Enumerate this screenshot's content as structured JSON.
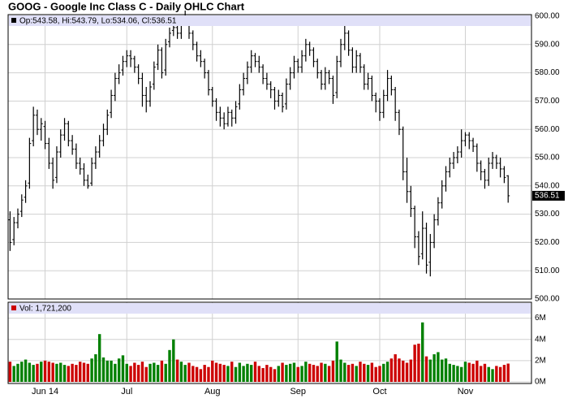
{
  "chart_data": [
    {
      "type": "ohlc",
      "title": "GOOG - Google Inc Class C - Daily OHLC Chart",
      "legend_text": "Op:543.58, Hi:543.79, Lo:534.06, Cl:536.51",
      "color": "#000000",
      "grid": true,
      "xlim": [
        -0.5,
        134
      ],
      "xticks": [
        {
          "value": 9,
          "label": "Jun 14"
        },
        {
          "value": 30,
          "label": "Jul"
        },
        {
          "value": 52,
          "label": "Aug"
        },
        {
          "value": 74,
          "label": "Sep"
        },
        {
          "value": 95,
          "label": "Oct"
        },
        {
          "value": 117,
          "label": "Nov"
        }
      ],
      "ylim": [
        500,
        600
      ],
      "yticks": [
        {
          "value": 500,
          "label": "500.00"
        },
        {
          "value": 510,
          "label": "510.00"
        },
        {
          "value": 520,
          "label": "520.00"
        },
        {
          "value": 530,
          "label": "530.00"
        },
        {
          "value": 540,
          "label": "540.00"
        },
        {
          "value": 550,
          "label": "550.00"
        },
        {
          "value": 560,
          "label": "560.00"
        },
        {
          "value": 570,
          "label": "570.00"
        },
        {
          "value": 580,
          "label": "580.00"
        },
        {
          "value": 590,
          "label": "590.00"
        },
        {
          "value": 600,
          "label": "600.00"
        }
      ],
      "ohlc": [
        [
          528,
          531,
          517,
          520
        ],
        [
          521,
          529,
          519,
          527
        ],
        [
          527,
          532,
          525,
          530
        ],
        [
          531,
          537,
          529,
          535
        ],
        [
          536,
          542,
          534,
          540
        ],
        [
          541,
          557,
          539,
          555
        ],
        [
          556,
          568,
          554,
          565
        ],
        [
          565,
          567,
          558,
          560
        ],
        [
          560,
          564,
          556,
          562
        ],
        [
          561,
          563,
          553,
          555
        ],
        [
          555,
          557,
          546,
          548
        ],
        [
          548,
          550,
          539,
          542
        ],
        [
          543,
          554,
          541,
          552
        ],
        [
          552,
          560,
          550,
          558
        ],
        [
          558,
          564,
          556,
          562
        ],
        [
          562,
          563,
          554,
          556
        ],
        [
          556,
          558,
          551,
          553
        ],
        [
          553,
          555,
          546,
          548
        ],
        [
          548,
          550,
          544,
          546
        ],
        [
          546,
          548,
          540,
          542
        ],
        [
          542,
          544,
          539,
          540
        ],
        [
          541,
          550,
          540,
          548
        ],
        [
          548,
          554,
          546,
          552
        ],
        [
          552,
          558,
          550,
          556
        ],
        [
          556,
          562,
          554,
          560
        ],
        [
          560,
          567,
          558,
          565
        ],
        [
          566,
          574,
          564,
          572
        ],
        [
          572,
          580,
          570,
          578
        ],
        [
          578,
          583,
          576,
          580
        ],
        [
          581,
          586,
          579,
          584
        ],
        [
          584,
          588,
          582,
          586
        ],
        [
          586,
          588,
          582,
          585
        ],
        [
          585,
          586,
          580,
          582
        ],
        [
          582,
          583,
          576,
          578
        ],
        [
          578,
          580,
          568,
          572
        ],
        [
          572,
          575,
          566,
          570
        ],
        [
          570,
          577,
          568,
          575
        ],
        [
          576,
          584,
          574,
          582
        ],
        [
          583,
          590,
          581,
          588
        ],
        [
          588,
          589,
          578,
          580
        ],
        [
          581,
          592,
          579,
          590
        ],
        [
          591,
          596,
          589,
          594
        ],
        [
          595,
          598,
          593,
          596
        ],
        [
          596,
          597,
          592,
          594
        ],
        [
          594,
          600,
          592,
          598
        ],
        [
          599,
          602,
          597,
          600
        ],
        [
          599,
          600,
          592,
          594
        ],
        [
          594,
          595,
          588,
          590
        ],
        [
          590,
          591,
          584,
          586
        ],
        [
          586,
          588,
          582,
          584
        ],
        [
          584,
          585,
          578,
          580
        ],
        [
          580,
          581,
          572,
          574
        ],
        [
          574,
          575,
          568,
          570
        ],
        [
          570,
          571,
          563,
          566
        ],
        [
          566,
          568,
          561,
          564
        ],
        [
          564,
          566,
          560,
          562
        ],
        [
          562,
          568,
          561,
          566
        ],
        [
          566,
          567,
          561,
          564
        ],
        [
          564,
          570,
          562,
          568
        ],
        [
          569,
          576,
          567,
          574
        ],
        [
          574,
          580,
          572,
          578
        ],
        [
          578,
          584,
          576,
          582
        ],
        [
          582,
          588,
          580,
          586
        ],
        [
          586,
          587,
          582,
          584
        ],
        [
          584,
          586,
          580,
          582
        ],
        [
          582,
          583,
          576,
          578
        ],
        [
          578,
          580,
          574,
          576
        ],
        [
          576,
          577,
          571,
          574
        ],
        [
          574,
          575,
          567,
          570
        ],
        [
          570,
          574,
          568,
          572
        ],
        [
          572,
          573,
          566,
          568
        ],
        [
          569,
          578,
          567,
          576
        ],
        [
          576,
          582,
          574,
          580
        ],
        [
          580,
          586,
          578,
          584
        ],
        [
          584,
          585,
          580,
          582
        ],
        [
          582,
          588,
          580,
          586
        ],
        [
          586,
          592,
          584,
          590
        ],
        [
          590,
          591,
          586,
          588
        ],
        [
          588,
          589,
          582,
          584
        ],
        [
          584,
          585,
          578,
          580
        ],
        [
          580,
          581,
          574,
          576
        ],
        [
          576,
          582,
          574,
          580
        ],
        [
          580,
          581,
          576,
          578
        ],
        [
          578,
          579,
          569,
          572
        ],
        [
          573,
          586,
          571,
          584
        ],
        [
          584,
          592,
          582,
          590
        ],
        [
          590,
          597,
          588,
          594
        ],
        [
          594,
          595,
          586,
          588
        ],
        [
          588,
          589,
          580,
          582
        ],
        [
          582,
          588,
          580,
          586
        ],
        [
          586,
          587,
          580,
          582
        ],
        [
          582,
          583,
          574,
          576
        ],
        [
          576,
          580,
          574,
          578
        ],
        [
          578,
          579,
          570,
          572
        ],
        [
          572,
          573,
          566,
          570
        ],
        [
          570,
          571,
          563,
          566
        ],
        [
          566,
          574,
          564,
          572
        ],
        [
          572,
          581,
          570,
          578
        ],
        [
          578,
          579,
          572,
          574
        ],
        [
          574,
          575,
          563,
          566
        ],
        [
          566,
          567,
          558,
          560
        ],
        [
          560,
          561,
          542,
          545
        ],
        [
          545,
          550,
          534,
          538
        ],
        [
          538,
          540,
          529,
          532
        ],
        [
          532,
          533,
          518,
          522
        ],
        [
          522,
          524,
          512,
          515
        ],
        [
          516,
          531,
          514,
          525
        ],
        [
          525,
          527,
          509,
          512
        ],
        [
          513,
          523,
          508,
          520
        ],
        [
          520,
          530,
          518,
          528
        ],
        [
          528,
          536,
          526,
          534
        ],
        [
          534,
          542,
          532,
          540
        ],
        [
          540,
          547,
          538,
          545
        ],
        [
          545,
          550,
          543,
          548
        ],
        [
          548,
          552,
          546,
          550
        ],
        [
          550,
          554,
          548,
          552
        ],
        [
          552,
          560,
          550,
          556
        ],
        [
          556,
          559,
          554,
          558
        ],
        [
          558,
          559,
          553,
          556
        ],
        [
          556,
          557,
          552,
          554
        ],
        [
          554,
          555,
          545,
          548
        ],
        [
          548,
          549,
          542,
          545
        ],
        [
          545,
          546,
          539,
          542
        ],
        [
          542,
          550,
          540,
          548
        ],
        [
          548,
          552,
          546,
          550
        ],
        [
          550,
          551,
          546,
          548
        ],
        [
          548,
          550,
          543,
          546
        ],
        [
          546,
          547,
          541,
          543
        ],
        [
          543.58,
          543.79,
          534.06,
          536.51
        ]
      ]
    },
    {
      "type": "volume",
      "legend_text": "Vol: 1,721,200",
      "up_color": "#008000",
      "down_color": "#cc0000",
      "grid": true,
      "xlim": [
        -0.5,
        134
      ],
      "ylim": [
        0,
        7500000
      ],
      "yticks": [
        {
          "value": 0,
          "label": "0M"
        },
        {
          "value": 2000000,
          "label": "2M"
        },
        {
          "value": 4000000,
          "label": "4M"
        },
        {
          "value": 6000000,
          "label": "6M"
        }
      ],
      "values": [
        1900000,
        1500000,
        1700000,
        1900000,
        2100000,
        1800000,
        1600000,
        1700000,
        1900000,
        2000000,
        1900000,
        1800000,
        1700000,
        1800000,
        1600000,
        1500000,
        1700000,
        1600000,
        1900000,
        1800000,
        1700000,
        2200000,
        2600000,
        4500000,
        2300000,
        2000000,
        2000000,
        1700000,
        2200000,
        2500000,
        1700000,
        1500000,
        1800000,
        1600000,
        1900000,
        1400000,
        1700000,
        1800000,
        1600000,
        2000000,
        1700000,
        3000000,
        4000000,
        2100000,
        1900000,
        1600000,
        1800000,
        1500000,
        1400000,
        1200000,
        1600000,
        1400000,
        2000000,
        1800000,
        1700000,
        1600000,
        1500000,
        1900000,
        1400000,
        1800000,
        1500000,
        1700000,
        1600000,
        1900000,
        1500000,
        1300000,
        1600000,
        1400000,
        1200000,
        1500000,
        1800000,
        1600000,
        1700000,
        1800000,
        1400000,
        1500000,
        1900000,
        1700000,
        1600000,
        1500000,
        1800000,
        1700000,
        1500000,
        2000000,
        3800000,
        2100000,
        1800000,
        1600000,
        1700000,
        1500000,
        1900000,
        1700000,
        1600000,
        1800000,
        1400000,
        1500000,
        1700000,
        1900000,
        2200000,
        2600000,
        2200000,
        2000000,
        1800000,
        2100000,
        3500000,
        3600000,
        5600000,
        2400000,
        2100000,
        2600000,
        2800000,
        2100000,
        2200000,
        1700000,
        1600000,
        1500000,
        1400000,
        1900000,
        1800000,
        1700000,
        2000000,
        1500000,
        1700000,
        1400000,
        1200000,
        1500000,
        1400000,
        1600000,
        1721200
      ]
    }
  ]
}
